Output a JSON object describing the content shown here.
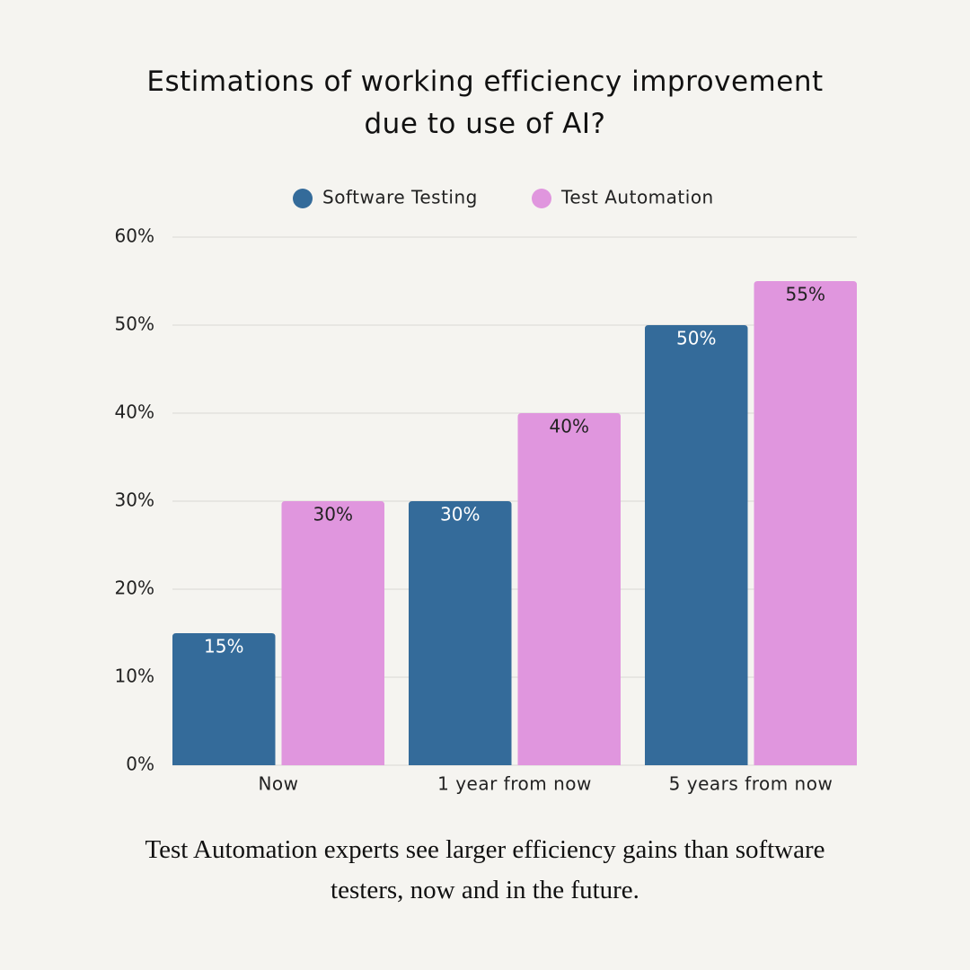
{
  "chart_data": {
    "type": "bar",
    "title": "Estimations of working efficiency improvement due to use of AI?",
    "caption": "Test Automation experts see larger efficiency gains than software testers, now and in the future.",
    "categories": [
      "Now",
      "1 year from now",
      "5 years from now"
    ],
    "series": [
      {
        "name": "Software Testing",
        "color": "#346b9a",
        "values": [
          15,
          30,
          50
        ],
        "value_labels": [
          "15%",
          "30%",
          "50%"
        ]
      },
      {
        "name": "Test Automation",
        "color": "#e096de",
        "values": [
          30,
          40,
          55
        ],
        "value_labels": [
          "30%",
          "40%",
          "55%"
        ]
      }
    ],
    "ylim": [
      0,
      60
    ],
    "yticks": [
      {
        "value": 0,
        "label": "0%"
      },
      {
        "value": 10,
        "label": "10%"
      },
      {
        "value": 20,
        "label": "20%"
      },
      {
        "value": 30,
        "label": "30%"
      },
      {
        "value": 40,
        "label": "40%"
      },
      {
        "value": 50,
        "label": "50%"
      },
      {
        "value": 60,
        "label": "60%"
      }
    ],
    "grid": true,
    "legend": "top"
  }
}
